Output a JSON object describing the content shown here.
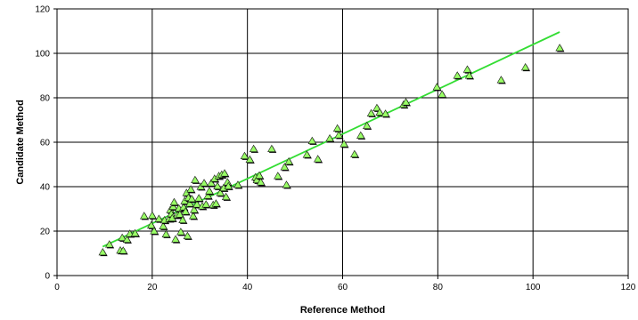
{
  "chart_data": {
    "type": "scatter",
    "title": "",
    "xlabel": "Reference Method",
    "ylabel": "Candidate Method",
    "xlim": [
      0,
      120
    ],
    "ylim": [
      0,
      120
    ],
    "x_ticks": [
      0,
      20,
      40,
      60,
      80,
      100,
      120
    ],
    "y_ticks": [
      0,
      20,
      40,
      60,
      80,
      100,
      120
    ],
    "grid": true,
    "legend": "none",
    "marker": "triangle",
    "marker_color": "#99ff66",
    "line_color": "#33dd33",
    "series": [
      {
        "points": [
          [
            9.6,
            10.5
          ],
          [
            11.0,
            14.0
          ],
          [
            13.3,
            11.3
          ],
          [
            13.7,
            17.0
          ],
          [
            13.9,
            11.2
          ],
          [
            14.7,
            16.2
          ],
          [
            15.3,
            18.8
          ],
          [
            16.4,
            19.0
          ],
          [
            18.3,
            26.8
          ],
          [
            19.8,
            22.6
          ],
          [
            20.0,
            27.0
          ],
          [
            20.4,
            20.0
          ],
          [
            21.4,
            25.5
          ],
          [
            22.3,
            22.2
          ],
          [
            22.6,
            24.9
          ],
          [
            22.9,
            18.6
          ],
          [
            23.6,
            25.6
          ],
          [
            23.8,
            29.5
          ],
          [
            24.0,
            27.7
          ],
          [
            24.2,
            25.8
          ],
          [
            24.4,
            31.0
          ],
          [
            24.6,
            33.0
          ],
          [
            24.9,
            16.3
          ],
          [
            25.3,
            27.2
          ],
          [
            25.6,
            30.2
          ],
          [
            25.8,
            27.5
          ],
          [
            26.0,
            19.6
          ],
          [
            26.4,
            25.0
          ],
          [
            26.6,
            30.8
          ],
          [
            26.8,
            33.5
          ],
          [
            27.0,
            28.8
          ],
          [
            27.2,
            37.2
          ],
          [
            27.4,
            17.8
          ],
          [
            27.6,
            35.0
          ],
          [
            27.9,
            32.4
          ],
          [
            28.1,
            38.8
          ],
          [
            28.3,
            34.5
          ],
          [
            28.6,
            26.8
          ],
          [
            28.8,
            29.6
          ],
          [
            29.0,
            43.0
          ],
          [
            29.4,
            32.0
          ],
          [
            29.8,
            34.8
          ],
          [
            30.2,
            40.0
          ],
          [
            30.5,
            31.2
          ],
          [
            30.9,
            41.6
          ],
          [
            31.3,
            32.0
          ],
          [
            31.7,
            35.9
          ],
          [
            32.0,
            38.0
          ],
          [
            32.4,
            41.6
          ],
          [
            32.8,
            31.8
          ],
          [
            33.1,
            43.6
          ],
          [
            33.4,
            32.4
          ],
          [
            33.7,
            40.2
          ],
          [
            34.0,
            44.8
          ],
          [
            34.3,
            37.2
          ],
          [
            34.6,
            45.4
          ],
          [
            35.0,
            39.4
          ],
          [
            35.2,
            46.0
          ],
          [
            35.5,
            35.4
          ],
          [
            35.8,
            42.0
          ],
          [
            36.0,
            40.2
          ],
          [
            38.0,
            40.8
          ],
          [
            39.4,
            53.8
          ],
          [
            40.5,
            52.2
          ],
          [
            41.3,
            57.0
          ],
          [
            41.7,
            44.2
          ],
          [
            42.0,
            43.0
          ],
          [
            42.5,
            45.0
          ],
          [
            42.8,
            42.0
          ],
          [
            45.1,
            57.0
          ],
          [
            46.4,
            44.8
          ],
          [
            47.8,
            48.8
          ],
          [
            48.2,
            40.8
          ],
          [
            48.7,
            51.3
          ],
          [
            52.5,
            54.4
          ],
          [
            53.6,
            60.6
          ],
          [
            54.8,
            52.4
          ],
          [
            57.3,
            61.7
          ],
          [
            58.9,
            66.2
          ],
          [
            59.2,
            63.2
          ],
          [
            60.3,
            59.2
          ],
          [
            62.5,
            54.6
          ],
          [
            63.8,
            63.0
          ],
          [
            65.1,
            67.4
          ],
          [
            66.0,
            73.0
          ],
          [
            67.2,
            75.4
          ],
          [
            67.8,
            73.4
          ],
          [
            69.0,
            72.8
          ],
          [
            72.8,
            76.9
          ],
          [
            73.3,
            78.0
          ],
          [
            79.8,
            84.8
          ],
          [
            80.9,
            81.5
          ],
          [
            84.1,
            90.0
          ],
          [
            86.2,
            92.7
          ],
          [
            86.6,
            90.0
          ],
          [
            93.3,
            88.0
          ],
          [
            98.4,
            93.7
          ],
          [
            105.6,
            102.4
          ]
        ]
      }
    ],
    "trendline": {
      "from": [
        9.6,
        13.0
      ],
      "to": [
        105.6,
        109.6
      ]
    }
  }
}
